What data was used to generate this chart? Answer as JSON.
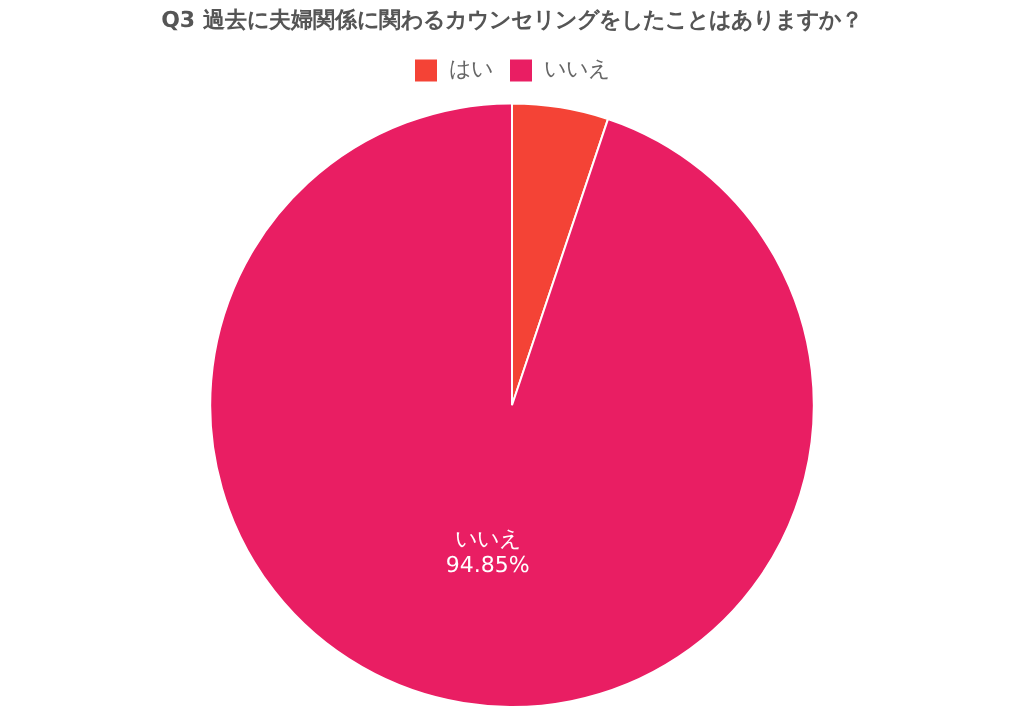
{
  "chart_data": {
    "type": "pie",
    "title": "Q3 過去に夫婦関係に関わるカウンセリングをしたことはありますか？",
    "categories": [
      "はい",
      "いいえ"
    ],
    "values": [
      5.15,
      94.85
    ],
    "colors": [
      "#f44336",
      "#e91e63"
    ],
    "value_labels": [
      null,
      "94.85%"
    ],
    "legend": "top"
  }
}
